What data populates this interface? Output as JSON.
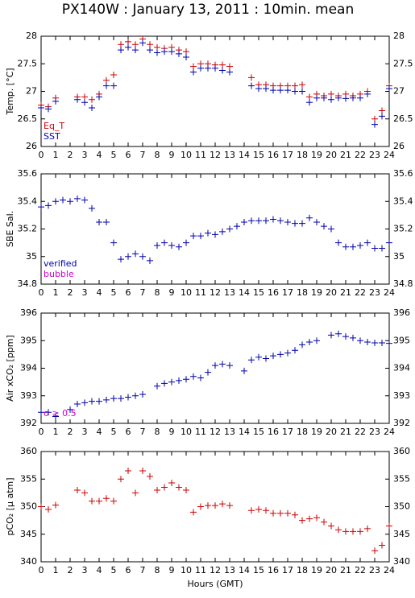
{
  "title": "PX140W : January 13, 2011 : 10min. mean",
  "chart_data": [
    {
      "type": "scatter",
      "ylabel": "Temp. [°C]",
      "xlim": [
        0,
        24
      ],
      "xticks": [
        0,
        1,
        2,
        3,
        4,
        5,
        6,
        7,
        8,
        9,
        10,
        11,
        12,
        13,
        14,
        15,
        16,
        17,
        18,
        19,
        20,
        21,
        22,
        23,
        24
      ],
      "ylim": [
        26,
        28
      ],
      "yticks": [
        26,
        26.5,
        27,
        27.5,
        28
      ],
      "legend": "lower left",
      "x": [
        0,
        0.5,
        1,
        1.5,
        2,
        2.5,
        3,
        3.5,
        4,
        4.5,
        5,
        5.5,
        6,
        6.5,
        7,
        7.5,
        8,
        8.5,
        9,
        9.5,
        10,
        10.5,
        11,
        11.5,
        12,
        12.5,
        13,
        13.5,
        14,
        14.5,
        15,
        15.5,
        16,
        16.5,
        17,
        17.5,
        18,
        18.5,
        19,
        19.5,
        20,
        20.5,
        21,
        21.5,
        22,
        22.5,
        23,
        23.5,
        24
      ],
      "series": [
        {
          "name": "Eq_T",
          "color": "#cc0000",
          "values": [
            26.75,
            26.72,
            26.88,
            null,
            null,
            26.9,
            26.9,
            26.85,
            26.95,
            27.2,
            27.3,
            27.85,
            27.9,
            27.85,
            27.95,
            27.85,
            27.8,
            27.78,
            27.8,
            27.75,
            27.72,
            27.45,
            27.5,
            27.5,
            27.48,
            27.48,
            27.45,
            null,
            null,
            27.25,
            27.12,
            27.12,
            27.1,
            27.1,
            27.1,
            27.1,
            27.12,
            26.9,
            26.95,
            26.92,
            26.95,
            26.92,
            26.95,
            26.92,
            26.95,
            27.0,
            26.5,
            26.65,
            27.1
          ]
        },
        {
          "name": "SST",
          "color": "#0000aa",
          "values": [
            26.7,
            26.68,
            26.82,
            null,
            null,
            26.85,
            26.8,
            26.7,
            26.9,
            27.1,
            27.1,
            27.75,
            27.8,
            27.75,
            27.88,
            27.75,
            27.7,
            27.72,
            27.72,
            27.68,
            27.62,
            27.35,
            27.42,
            27.42,
            27.42,
            27.38,
            27.35,
            null,
            null,
            27.1,
            27.05,
            27.05,
            27.02,
            27.02,
            27.02,
            27.0,
            27.0,
            26.8,
            26.88,
            26.88,
            26.85,
            26.88,
            26.87,
            26.88,
            26.88,
            26.95,
            26.4,
            26.55,
            27.05
          ]
        }
      ]
    },
    {
      "type": "scatter",
      "ylabel": "SBE Sal.",
      "xlim": [
        0,
        24
      ],
      "xticks": [
        0,
        1,
        2,
        3,
        4,
        5,
        6,
        7,
        8,
        9,
        10,
        11,
        12,
        13,
        14,
        15,
        16,
        17,
        18,
        19,
        20,
        21,
        22,
        23,
        24
      ],
      "ylim": [
        34.8,
        35.6
      ],
      "yticks": [
        34.8,
        35,
        35.2,
        35.4,
        35.6
      ],
      "legend": "lower left",
      "annotations": [
        {
          "text": "bubble",
          "color": "#cc00cc"
        }
      ],
      "x": [
        0,
        0.5,
        1,
        1.5,
        2,
        2.5,
        3,
        3.5,
        4,
        4.5,
        5,
        5.5,
        6,
        6.5,
        7,
        7.5,
        8,
        8.5,
        9,
        9.5,
        10,
        10.5,
        11,
        11.5,
        12,
        12.5,
        13,
        13.5,
        14,
        14.5,
        15,
        15.5,
        16,
        16.5,
        17,
        17.5,
        18,
        18.5,
        19,
        19.5,
        20,
        20.5,
        21,
        21.5,
        22,
        22.5,
        23,
        23.5,
        24
      ],
      "series": [
        {
          "name": "verified",
          "color": "#0000aa",
          "values": [
            35.36,
            35.37,
            35.4,
            35.41,
            35.4,
            35.42,
            35.41,
            35.35,
            35.25,
            35.25,
            35.1,
            34.98,
            35.0,
            35.02,
            35.0,
            34.97,
            35.08,
            35.1,
            35.08,
            35.07,
            35.1,
            35.15,
            35.15,
            35.17,
            35.16,
            35.18,
            35.2,
            35.22,
            35.25,
            35.26,
            35.26,
            35.26,
            35.27,
            35.26,
            35.25,
            35.24,
            35.24,
            35.28,
            35.25,
            35.22,
            35.2,
            35.1,
            35.07,
            35.07,
            35.08,
            35.1,
            35.06,
            35.06,
            35.1
          ]
        }
      ]
    },
    {
      "type": "scatter",
      "ylabel": "Air xCO₂ [ppm]",
      "xlim": [
        0,
        24
      ],
      "xticks": [
        0,
        1,
        2,
        3,
        4,
        5,
        6,
        7,
        8,
        9,
        10,
        11,
        12,
        13,
        14,
        15,
        16,
        17,
        18,
        19,
        20,
        21,
        22,
        23,
        24
      ],
      "ylim": [
        392,
        396
      ],
      "yticks": [
        392,
        393,
        394,
        395,
        396
      ],
      "annotations": [
        {
          "text": "σ ≥ 0.5",
          "color": "#cc00cc"
        }
      ],
      "x": [
        0,
        0.5,
        1,
        1.5,
        2,
        2.5,
        3,
        3.5,
        4,
        4.5,
        5,
        5.5,
        6,
        6.5,
        7,
        7.5,
        8,
        8.5,
        9,
        9.5,
        10,
        10.5,
        11,
        11.5,
        12,
        12.5,
        13,
        13.5,
        14,
        14.5,
        15,
        15.5,
        16,
        16.5,
        17,
        17.5,
        18,
        18.5,
        19,
        19.5,
        20,
        20.5,
        21,
        21.5,
        22,
        22.5,
        23,
        23.5,
        24
      ],
      "series": [
        {
          "color": "#0000aa",
          "values": [
            392.4,
            392.4,
            392.25,
            null,
            392.5,
            392.7,
            392.75,
            392.8,
            392.8,
            392.85,
            392.9,
            392.9,
            392.95,
            393.0,
            393.05,
            null,
            393.35,
            393.45,
            393.5,
            393.55,
            393.6,
            393.7,
            393.65,
            393.85,
            394.1,
            394.15,
            394.1,
            null,
            393.9,
            394.3,
            394.4,
            394.35,
            394.45,
            394.5,
            394.55,
            394.65,
            394.85,
            394.95,
            395.0,
            null,
            395.2,
            395.25,
            395.15,
            395.1,
            395.0,
            394.95,
            394.92,
            394.92,
            394.9
          ]
        }
      ]
    },
    {
      "type": "scatter",
      "ylabel": "pCO₂ [μ atm]",
      "xlabel": "Hours (GMT)",
      "xlim": [
        0,
        24
      ],
      "xticks": [
        0,
        1,
        2,
        3,
        4,
        5,
        6,
        7,
        8,
        9,
        10,
        11,
        12,
        13,
        14,
        15,
        16,
        17,
        18,
        19,
        20,
        21,
        22,
        23,
        24
      ],
      "ylim": [
        340,
        360
      ],
      "yticks": [
        340,
        345,
        350,
        355,
        360
      ],
      "x": [
        0,
        0.5,
        1,
        1.5,
        2,
        2.5,
        3,
        3.5,
        4,
        4.5,
        5,
        5.5,
        6,
        6.5,
        7,
        7.5,
        8,
        8.5,
        9,
        9.5,
        10,
        10.5,
        11,
        11.5,
        12,
        12.5,
        13,
        13.5,
        14,
        14.5,
        15,
        15.5,
        16,
        16.5,
        17,
        17.5,
        18,
        18.5,
        19,
        19.5,
        20,
        20.5,
        21,
        21.5,
        22,
        22.5,
        23,
        23.5,
        24
      ],
      "series": [
        {
          "color": "#cc0000",
          "values": [
            350,
            349.5,
            350.3,
            null,
            null,
            353,
            352.5,
            351,
            351,
            351.5,
            351,
            355,
            356.5,
            352.5,
            356.5,
            355.5,
            353,
            353.5,
            354.3,
            353.5,
            353,
            349,
            350,
            350.2,
            350.2,
            350.5,
            350.2,
            null,
            null,
            349.3,
            349.5,
            349.3,
            348.8,
            348.8,
            348.8,
            348.5,
            347.5,
            347.8,
            348,
            347.2,
            346.5,
            345.8,
            345.5,
            345.5,
            345.5,
            346,
            342,
            343,
            346.5
          ]
        }
      ]
    }
  ]
}
